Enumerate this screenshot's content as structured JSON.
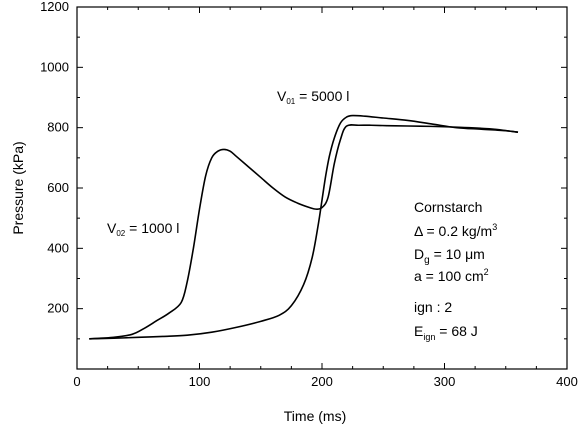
{
  "chart_data": {
    "type": "line",
    "xlabel": "Time (ms)",
    "ylabel": "Pressure (kPa)",
    "xlim": [
      0,
      400
    ],
    "ylim": [
      0,
      1200
    ],
    "x_ticks": [
      0,
      100,
      200,
      300,
      400
    ],
    "y_ticks": [
      200,
      400,
      600,
      800,
      1000,
      1200
    ],
    "grid": false,
    "line_color": "#000000",
    "series": [
      {
        "name_main": "V",
        "name_sub": "02",
        "name_rest": " = 1000 l",
        "x": [
          10,
          30,
          45,
          55,
          65,
          75,
          85,
          90,
          95,
          100,
          105,
          110,
          115,
          120,
          125,
          130,
          140,
          150,
          160,
          170,
          180,
          190,
          195,
          200,
          205,
          210,
          215,
          220,
          230,
          240,
          260,
          280,
          300,
          320,
          340,
          360
        ],
        "y": [
          100,
          105,
          115,
          135,
          160,
          185,
          220,
          290,
          400,
          530,
          640,
          700,
          722,
          728,
          722,
          705,
          670,
          635,
          600,
          570,
          550,
          535,
          530,
          535,
          570,
          680,
          760,
          805,
          808,
          808,
          806,
          805,
          803,
          800,
          795,
          785
        ]
      },
      {
        "name_main": "V",
        "name_sub": "01",
        "name_rest": " = 5000 l",
        "x": [
          10,
          30,
          50,
          70,
          90,
          110,
          130,
          150,
          165,
          175,
          185,
          192,
          197,
          200,
          203,
          206,
          210,
          215,
          220,
          225,
          235,
          250,
          270,
          290,
          310,
          330,
          350,
          360
        ],
        "y": [
          100,
          102,
          105,
          108,
          112,
          122,
          138,
          158,
          178,
          210,
          280,
          370,
          480,
          560,
          640,
          705,
          765,
          815,
          835,
          840,
          838,
          832,
          824,
          812,
          800,
          795,
          790,
          785
        ]
      }
    ],
    "annotation": {
      "material": "Cornstarch",
      "delta_label": "Δ = 0.2 kg/m",
      "delta_sup": "3",
      "dg_main": "D",
      "dg_sub": "g",
      "dg_rest": " = 10 μm",
      "area_label": "a = 100 cm",
      "area_sup": "2",
      "ign_label": "ign : 2",
      "eign_main": "E",
      "eign_sub": "ign",
      "eign_rest": " =  68 J"
    }
  }
}
